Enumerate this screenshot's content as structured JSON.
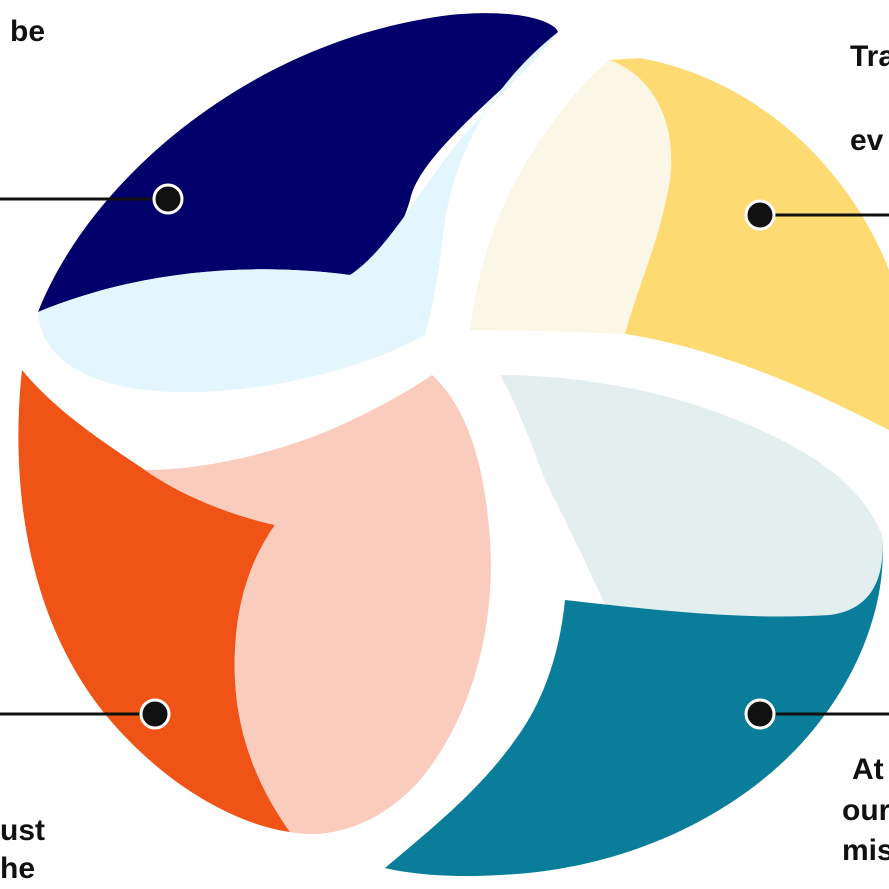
{
  "diagram": {
    "quadrants": [
      {
        "id": "top-left",
        "outer_color": "#02006B",
        "inner_color": "#E3F5FD"
      },
      {
        "id": "top-right",
        "outer_color": "#FDDA72",
        "inner_color": "#FCF6E6"
      },
      {
        "id": "bottom-left",
        "outer_color": "#F05316",
        "inner_color": "#F9CCBE"
      },
      {
        "id": "bottom-right",
        "outer_color": "#0A7D9B",
        "inner_color": "#E3EEEE"
      }
    ],
    "connector_color": "#111111",
    "labels": {
      "top_left": [
        "be"
      ],
      "top_right": [
        "Tra",
        "ev"
      ],
      "bottom_left": [
        "ust",
        "he"
      ],
      "bottom_right": [
        "At",
        "our",
        "mis"
      ]
    }
  }
}
